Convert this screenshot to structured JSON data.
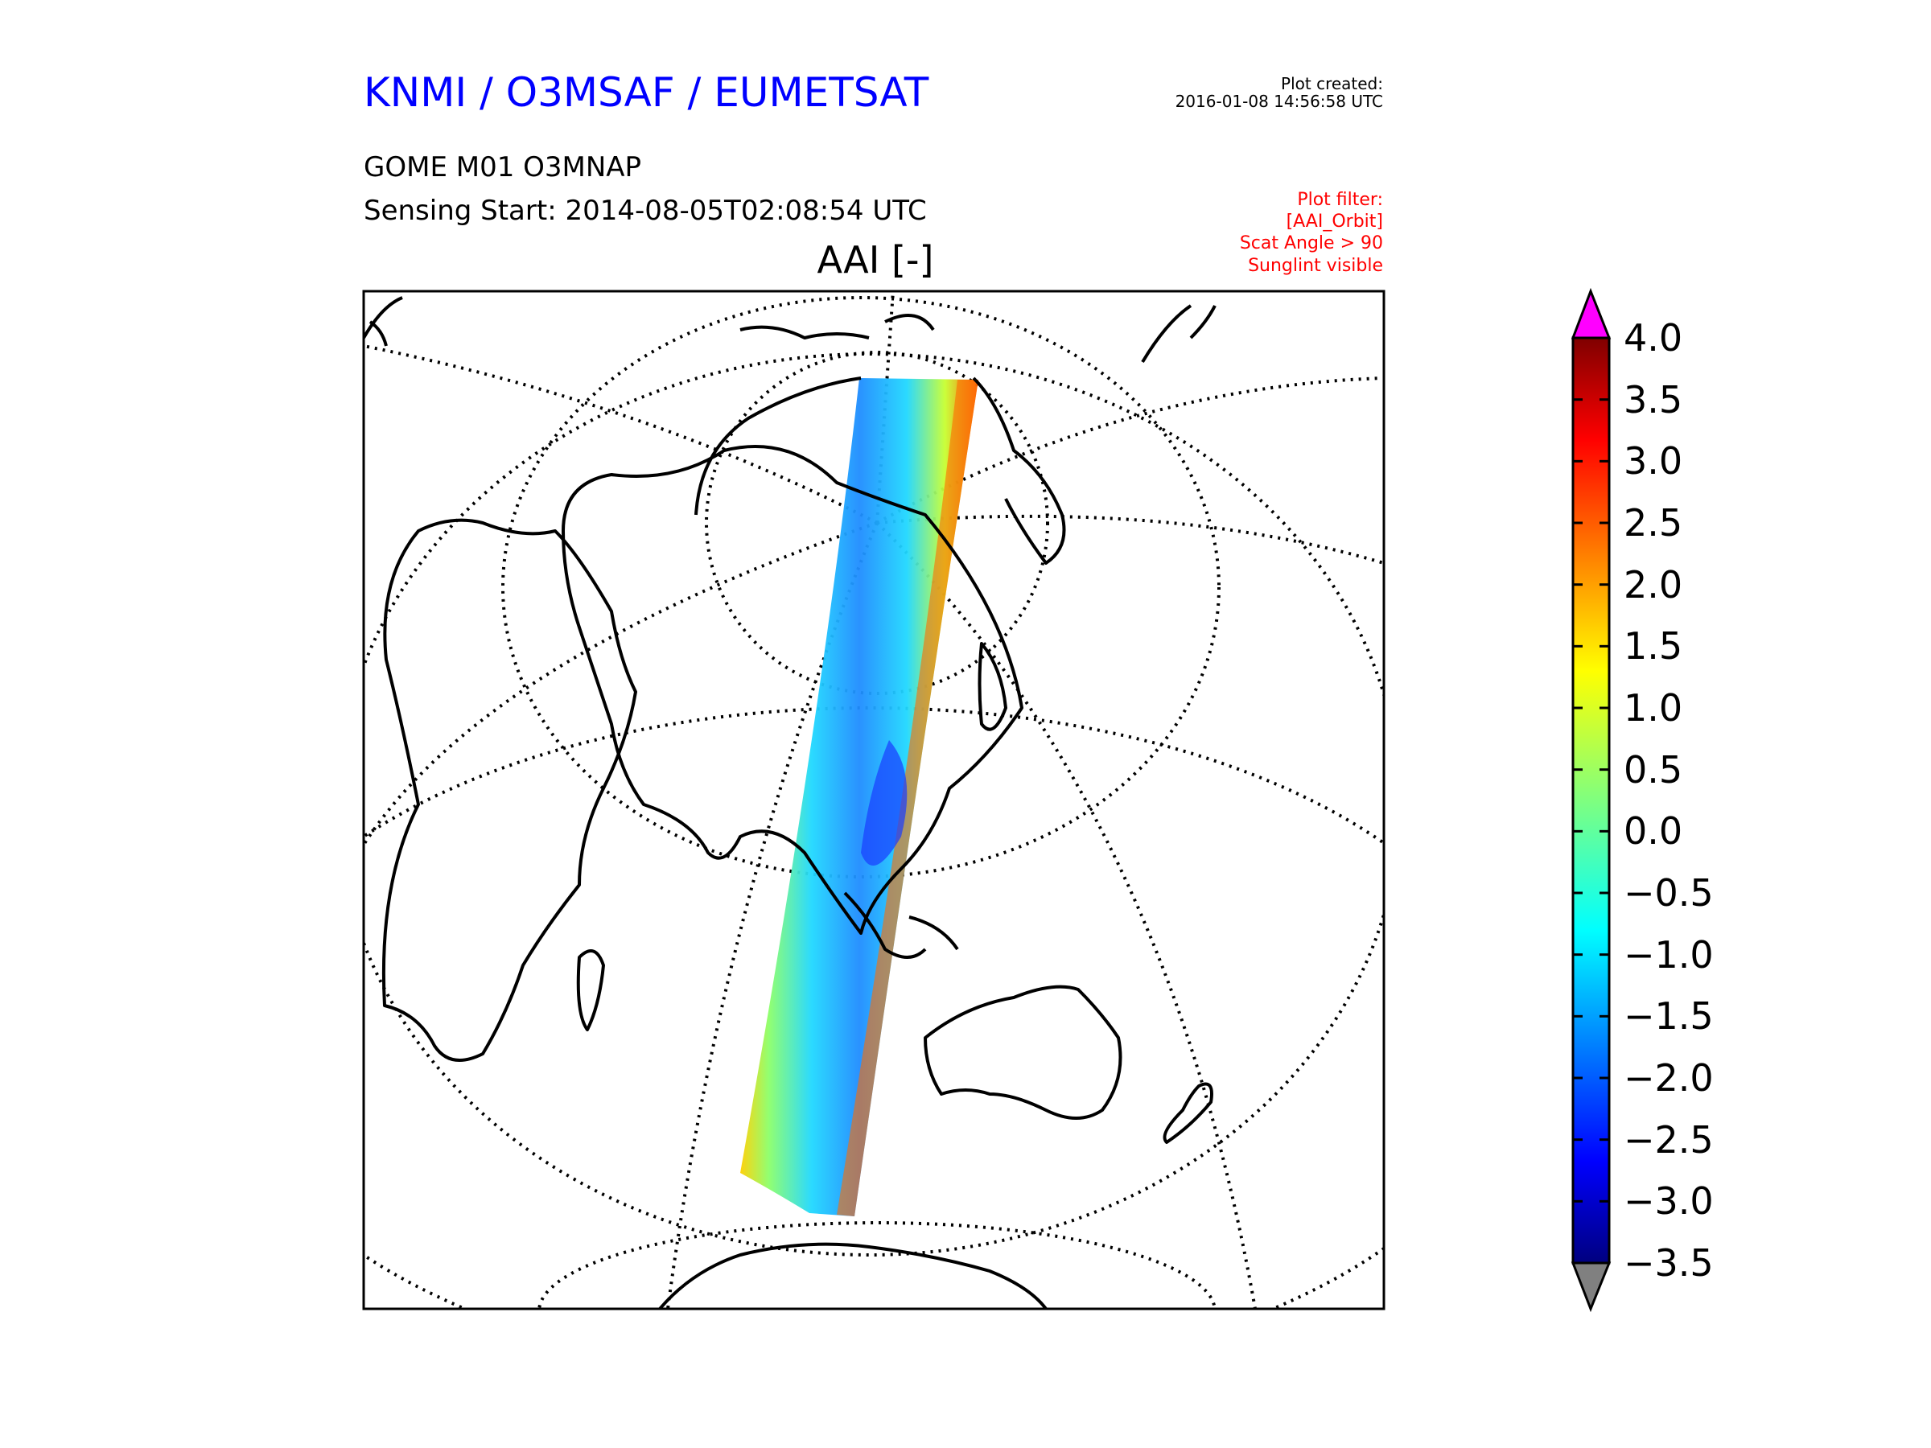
{
  "header": {
    "org_title": "KNMI / O3MSAF / EUMETSAT",
    "created_label": "Plot created:",
    "created_time": "2016-01-08 14:56:58 UTC",
    "product": "GOME M01 O3MNAP",
    "sensing_start": "Sensing Start: 2014-08-05T02:08:54 UTC",
    "filter_lines": [
      "Plot filter:",
      "[AAI_Orbit]",
      "Scat Angle > 90",
      "Sunglint visible"
    ]
  },
  "map": {
    "variable_title": "AAI [-]",
    "projection": "polar-stereographic-style",
    "graticule": "dotted",
    "colors": {
      "coast": "#000000",
      "frame": "#000000"
    }
  },
  "colorbar": {
    "ticks": [
      "4.0",
      "3.5",
      "3.0",
      "2.5",
      "2.0",
      "1.5",
      "1.0",
      "0.5",
      "0.0",
      "−0.5",
      "−1.0",
      "−1.5",
      "−2.0",
      "−2.5",
      "−3.0",
      "−3.5"
    ],
    "range": [
      -3.5,
      4.0
    ],
    "over_color": "#ff00ff",
    "under_color": "#808080",
    "colormap": "jet"
  }
}
